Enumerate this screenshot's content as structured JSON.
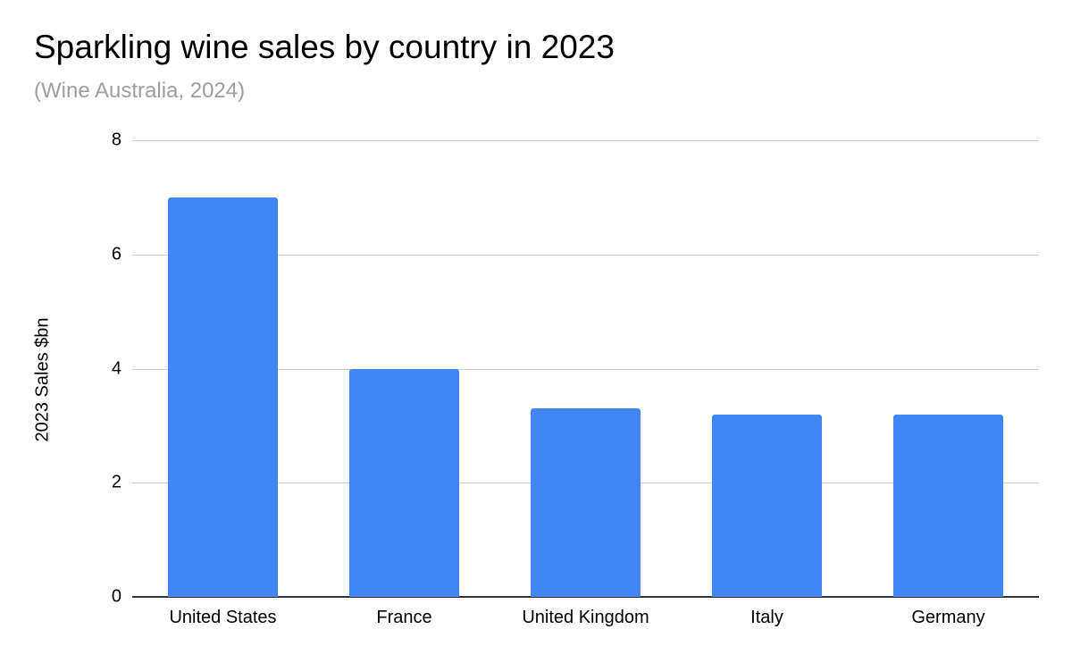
{
  "chart_data": {
    "type": "bar",
    "title": "Sparkling wine sales by country in 2023",
    "subtitle": "(Wine Australia, 2024)",
    "xlabel": "",
    "ylabel": "2023 Sales $bn",
    "categories": [
      "United States",
      "France",
      "United Kingdom",
      "Italy",
      "Germany"
    ],
    "values": [
      7.0,
      4.0,
      3.3,
      3.2,
      3.2
    ],
    "ylim": [
      0,
      8
    ],
    "yticks": [
      "0",
      "2",
      "4",
      "6",
      "8"
    ],
    "grid": true,
    "legend": "none",
    "bar_color": "#4285f4"
  }
}
